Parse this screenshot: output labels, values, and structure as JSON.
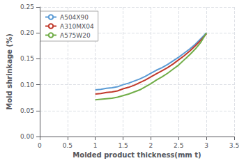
{
  "chart_data": {
    "type": "line",
    "xlabel": "Molded product thickness(mm t)",
    "ylabel": "Mold shrinkage (%)",
    "x": [
      1.0,
      1.1,
      1.2,
      1.3,
      1.4,
      1.5,
      1.6,
      1.7,
      1.8,
      1.9,
      2.0,
      2.1,
      2.2,
      2.3,
      2.4,
      2.5,
      2.6,
      2.7,
      2.8,
      2.9,
      3.0
    ],
    "series": [
      {
        "name": "A504X90",
        "color": "#5b9bd5",
        "values": [
          0.09,
          0.091,
          0.093,
          0.094,
          0.096,
          0.1,
          0.103,
          0.107,
          0.111,
          0.116,
          0.122,
          0.128,
          0.133,
          0.139,
          0.146,
          0.153,
          0.161,
          0.169,
          0.178,
          0.189,
          0.2
        ]
      },
      {
        "name": "A310MX04",
        "color": "#c0392b",
        "values": [
          0.082,
          0.083,
          0.085,
          0.086,
          0.088,
          0.092,
          0.095,
          0.099,
          0.104,
          0.109,
          0.115,
          0.121,
          0.127,
          0.133,
          0.14,
          0.148,
          0.156,
          0.165,
          0.175,
          0.186,
          0.198
        ]
      },
      {
        "name": "A575W20",
        "color": "#70ad47",
        "values": [
          0.071,
          0.072,
          0.073,
          0.074,
          0.076,
          0.079,
          0.082,
          0.086,
          0.09,
          0.096,
          0.102,
          0.109,
          0.115,
          0.122,
          0.13,
          0.138,
          0.148,
          0.158,
          0.169,
          0.182,
          0.2
        ]
      }
    ],
    "xlim": [
      0,
      3.5
    ],
    "ylim": [
      0,
      0.25
    ],
    "xticks": [
      0,
      0.5,
      1,
      1.5,
      2,
      2.5,
      3,
      3.5
    ],
    "yticks": [
      {
        "value": 0,
        "label": "0.00"
      },
      {
        "value": 0.05,
        "label": "0.05"
      },
      {
        "value": 0.1,
        "label": "0.10"
      },
      {
        "value": 0.15,
        "label": "0.15"
      },
      {
        "value": 0.2,
        "label": "0.20"
      },
      {
        "value": 0.25,
        "label": "0.25"
      }
    ],
    "grid": true,
    "legend": "upper left"
  }
}
